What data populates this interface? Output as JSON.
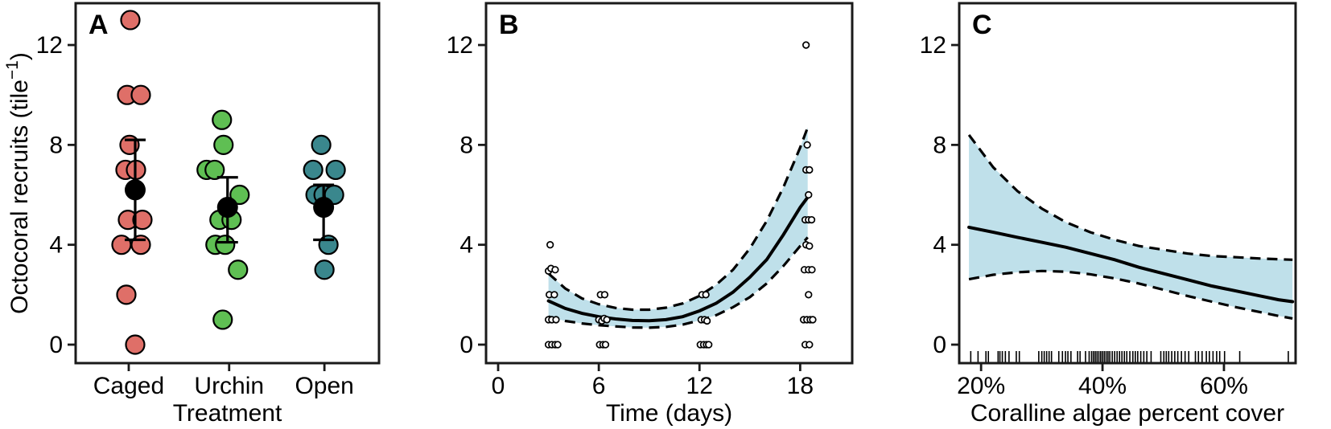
{
  "figure": {
    "y_axis": {
      "label_main": "Octocoral recruits (tile",
      "label_sup": "−1",
      "label_close": ")",
      "ticks": [
        0,
        4,
        8,
        12
      ]
    },
    "colors": {
      "frame": "#1a1a1a",
      "mean_point": "#000000",
      "ribbon": "#BFE0EA",
      "caged": "#DF6F68",
      "urchin": "#5FBF53",
      "open": "#3A878D"
    }
  },
  "chart_data": [
    {
      "panel": "A",
      "type": "scatter",
      "x_label": "Treatment",
      "ylim": [
        -0.7,
        13.7
      ],
      "categories": [
        "Caged",
        "Urchin",
        "Open"
      ],
      "groups": [
        {
          "name": "Caged",
          "color": "#DF6F68",
          "points": [
            {
              "v": 13,
              "dx": 2
            },
            {
              "v": 10,
              "dx": -2
            },
            {
              "v": 10,
              "dx": 15
            },
            {
              "v": 8,
              "dx": 1
            },
            {
              "v": 7,
              "dx": -4
            },
            {
              "v": 7,
              "dx": 9
            },
            {
              "v": 5,
              "dx": -1
            },
            {
              "v": 5,
              "dx": 17
            },
            {
              "v": 4,
              "dx": -9
            },
            {
              "v": 4,
              "dx": 15
            },
            {
              "v": 2,
              "dx": -3
            },
            {
              "v": 0,
              "dx": 8
            }
          ]
        },
        {
          "name": "Urchin",
          "color": "#5FBF53",
          "points": [
            {
              "v": 9,
              "dx": -9
            },
            {
              "v": 8,
              "dx": -7
            },
            {
              "v": 7,
              "dx": -28
            },
            {
              "v": 7,
              "dx": -18
            },
            {
              "v": 6,
              "dx": 13
            },
            {
              "v": 5,
              "dx": -12
            },
            {
              "v": 5,
              "dx": 3
            },
            {
              "v": 4,
              "dx": -17
            },
            {
              "v": 4,
              "dx": -5
            },
            {
              "v": 3,
              "dx": 11
            },
            {
              "v": 1,
              "dx": -8
            }
          ]
        },
        {
          "name": "Open",
          "color": "#3A878D",
          "points": [
            {
              "v": 8,
              "dx": -4
            },
            {
              "v": 7,
              "dx": -14
            },
            {
              "v": 7,
              "dx": 14
            },
            {
              "v": 6,
              "dx": -11
            },
            {
              "v": 6,
              "dx": -1
            },
            {
              "v": 6,
              "dx": 12
            },
            {
              "v": 4,
              "dx": 5
            },
            {
              "v": 3,
              "dx": 0
            }
          ]
        }
      ],
      "summaries": [
        {
          "category": "Caged",
          "mean": 6.2,
          "lo": 4.2,
          "hi": 8.2,
          "dx": 8
        },
        {
          "category": "Urchin",
          "mean": 5.5,
          "lo": 4.1,
          "hi": 6.7,
          "dx": -2
        },
        {
          "category": "Open",
          "mean": 5.5,
          "lo": 4.2,
          "hi": 6.4,
          "dx": -1
        }
      ]
    },
    {
      "panel": "B",
      "type": "scatter+fit",
      "x_label": "Time (days)",
      "x_ticks": [
        {
          "v": 0,
          "label": "0"
        },
        {
          "v": 6,
          "label": "6"
        },
        {
          "v": 12,
          "label": "12"
        },
        {
          "v": 18,
          "label": "18"
        }
      ],
      "xlim": [
        -0.72,
        21.1
      ],
      "ylim": [
        -0.7,
        13.7
      ],
      "ribbon_color": "#BFE0EA",
      "points": [
        [
          3.0,
          0
        ],
        [
          3.2,
          0
        ],
        [
          3.4,
          0
        ],
        [
          3.55,
          0
        ],
        [
          3.0,
          1
        ],
        [
          3.2,
          1
        ],
        [
          3.45,
          1
        ],
        [
          3.05,
          2
        ],
        [
          3.35,
          2
        ],
        [
          3.0,
          2.95
        ],
        [
          3.15,
          3.05
        ],
        [
          3.4,
          3
        ],
        [
          3.1,
          4
        ],
        [
          6.05,
          0
        ],
        [
          6.25,
          0
        ],
        [
          6.4,
          0
        ],
        [
          6.0,
          1
        ],
        [
          6.18,
          0.95
        ],
        [
          6.32,
          1.05
        ],
        [
          6.48,
          1
        ],
        [
          6.1,
          2
        ],
        [
          6.35,
          2
        ],
        [
          12.05,
          0
        ],
        [
          12.25,
          0
        ],
        [
          12.42,
          0
        ],
        [
          12.55,
          0
        ],
        [
          12.1,
          1
        ],
        [
          12.3,
          1
        ],
        [
          12.45,
          0.95
        ],
        [
          12.15,
          2
        ],
        [
          12.38,
          2
        ],
        [
          18.3,
          0
        ],
        [
          18.55,
          0
        ],
        [
          18.2,
          1
        ],
        [
          18.4,
          1
        ],
        [
          18.6,
          1
        ],
        [
          18.75,
          1
        ],
        [
          18.5,
          2
        ],
        [
          18.25,
          3
        ],
        [
          18.5,
          3
        ],
        [
          18.7,
          3
        ],
        [
          18.35,
          4
        ],
        [
          18.55,
          3.95
        ],
        [
          18.3,
          5
        ],
        [
          18.5,
          5
        ],
        [
          18.68,
          5
        ],
        [
          18.5,
          6
        ],
        [
          18.35,
          7
        ],
        [
          18.55,
          7
        ],
        [
          18.42,
          8
        ],
        [
          18.35,
          12
        ]
      ],
      "fit": {
        "x": [
          3,
          4,
          5,
          6,
          7,
          8,
          9,
          10,
          11,
          12,
          13,
          14,
          15,
          16,
          17,
          18,
          18.45
        ],
        "center": [
          1.75,
          1.45,
          1.25,
          1.12,
          1.03,
          0.97,
          0.96,
          1.0,
          1.12,
          1.35,
          1.66,
          2.1,
          2.7,
          3.4,
          4.4,
          5.5,
          5.9
        ],
        "upper": [
          2.85,
          2.25,
          1.85,
          1.62,
          1.47,
          1.4,
          1.4,
          1.48,
          1.65,
          1.95,
          2.4,
          3.0,
          3.85,
          4.95,
          6.3,
          7.9,
          8.7
        ],
        "lower": [
          1.12,
          0.95,
          0.85,
          0.78,
          0.73,
          0.69,
          0.68,
          0.71,
          0.8,
          0.97,
          1.18,
          1.5,
          1.9,
          2.45,
          3.15,
          3.95,
          4.3
        ]
      }
    },
    {
      "panel": "C",
      "type": "fit+rug",
      "x_label": "Coralline algae percent cover",
      "x_ticks": [
        {
          "v": 20,
          "label": "20%"
        },
        {
          "v": 40,
          "label": "40%"
        },
        {
          "v": 60,
          "label": "60%"
        }
      ],
      "xlim": [
        16.4,
        71.8
      ],
      "ylim": [
        -0.7,
        13.7
      ],
      "ribbon_color": "#BFE0EA",
      "fit": {
        "x": [
          18,
          22,
          26,
          30,
          34,
          38,
          42,
          46,
          50,
          54,
          58,
          62,
          66,
          69,
          71.3
        ],
        "center": [
          4.7,
          4.5,
          4.3,
          4.1,
          3.9,
          3.65,
          3.4,
          3.1,
          2.85,
          2.6,
          2.35,
          2.15,
          1.95,
          1.8,
          1.72
        ],
        "upper": [
          8.4,
          7.1,
          6.15,
          5.45,
          4.9,
          4.5,
          4.2,
          3.95,
          3.8,
          3.65,
          3.55,
          3.5,
          3.45,
          3.42,
          3.4
        ],
        "lower": [
          2.62,
          2.8,
          2.9,
          2.95,
          2.92,
          2.82,
          2.65,
          2.45,
          2.2,
          1.95,
          1.72,
          1.5,
          1.3,
          1.15,
          1.05
        ]
      },
      "rug": [
        18.3,
        19.5,
        20.8,
        21.2,
        22.8,
        23.1,
        23.5,
        24.0,
        24.6,
        25.8,
        26.3,
        29.5,
        30.0,
        30.4,
        30.8,
        31.2,
        31.6,
        32.8,
        33.4,
        33.9,
        34.3,
        34.8,
        35.9,
        36.3,
        37.2,
        37.8,
        38.2,
        38.5,
        38.8,
        39.1,
        39.4,
        39.7,
        40.0,
        40.3,
        40.6,
        40.9,
        41.2,
        41.6,
        42.0,
        42.4,
        42.8,
        43.2,
        43.6,
        44.0,
        44.5,
        45.0,
        45.4,
        45.8,
        46.3,
        46.8,
        47.3,
        48.0,
        49.6,
        50.1,
        50.5,
        50.9,
        51.4,
        51.9,
        52.4,
        53.0,
        53.6,
        54.2,
        55.3,
        55.8,
        56.4,
        57.1,
        57.6,
        58.2,
        58.8,
        59.3,
        60.1,
        62.6,
        70.6
      ]
    }
  ]
}
